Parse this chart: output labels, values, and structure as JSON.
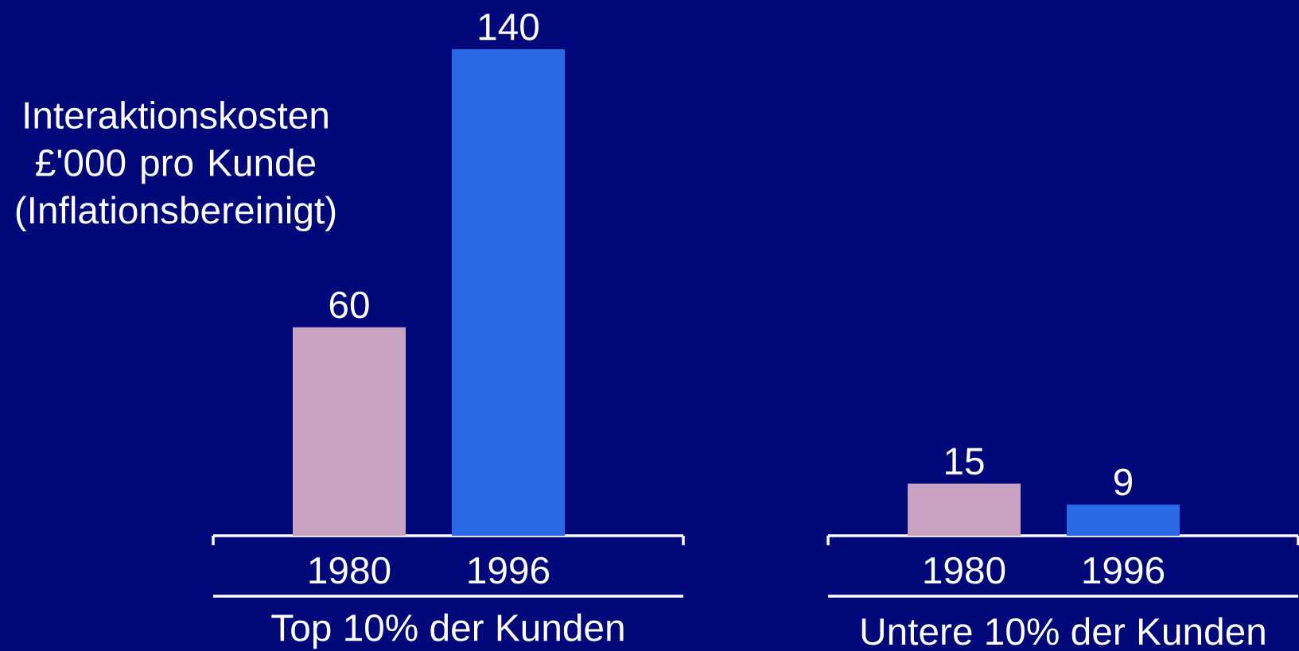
{
  "chart_data": [
    {
      "type": "bar",
      "ylabel": "Interaktionskosten £'000 pro Kunde (Inflationsbereinigt)",
      "xlabel": "Top 10% der Kunden",
      "categories": [
        "1980",
        "1996"
      ],
      "values": [
        60,
        140
      ],
      "colors": [
        "#c9a3bf",
        "#2a6ae6"
      ],
      "data_labels": true
    },
    {
      "type": "bar",
      "xlabel": "Untere 10% der Kunden",
      "categories": [
        "1980",
        "1996"
      ],
      "values": [
        15,
        9
      ],
      "colors": [
        "#c9a3bf",
        "#2a6ae6"
      ],
      "data_labels": true
    }
  ]
}
